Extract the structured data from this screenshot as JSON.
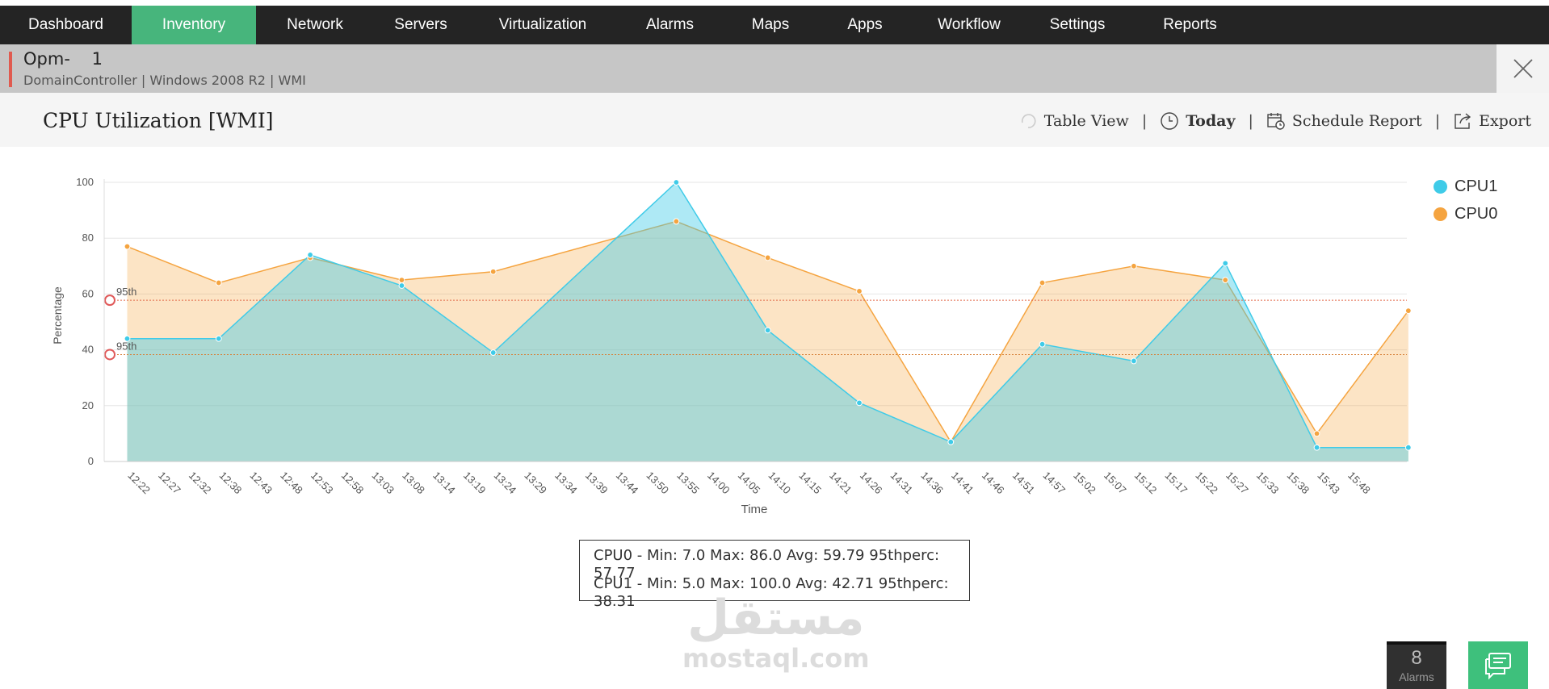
{
  "nav": {
    "items": [
      {
        "label": "Dashboard",
        "active": false
      },
      {
        "label": "Inventory",
        "active": true
      },
      {
        "label": "Network",
        "active": false
      },
      {
        "label": "Servers",
        "active": false
      },
      {
        "label": "Virtualization",
        "active": false
      },
      {
        "label": "Alarms",
        "active": false
      },
      {
        "label": "Maps",
        "active": false
      },
      {
        "label": "Apps",
        "active": false
      },
      {
        "label": "Workflow",
        "active": false
      },
      {
        "label": "Settings",
        "active": false
      },
      {
        "label": "Reports",
        "active": false
      }
    ]
  },
  "device": {
    "name": "Opm-    1",
    "info": "DomainController | Windows 2008 R2  | WMI"
  },
  "header": {
    "title": "CPU Utilization [WMI]",
    "table_view": "Table View",
    "today": "Today",
    "schedule_report": "Schedule Report",
    "export": "Export",
    "separator": "|"
  },
  "chart_data": {
    "type": "area",
    "xlabel": "Time",
    "ylabel": "Percentage",
    "ylim": [
      0,
      100
    ],
    "yticks": [
      0,
      20,
      40,
      60,
      80,
      100
    ],
    "grid": true,
    "legend_position": "top-right",
    "categories": [
      "12:22",
      "12:27",
      "12:32",
      "12:38",
      "12:43",
      "12:48",
      "12:53",
      "12:58",
      "13:03",
      "13:08",
      "13:14",
      "13:19",
      "13:24",
      "13:29",
      "13:34",
      "13:39",
      "13:44",
      "13:50",
      "13:55",
      "14:00",
      "14:05",
      "14:10",
      "14:15",
      "14:21",
      "14:26",
      "14:31",
      "14:36",
      "14:41",
      "14:46",
      "14:51",
      "14:57",
      "15:02",
      "15:07",
      "15:12",
      "15:17",
      "15:22",
      "15:27",
      "15:33",
      "15:38",
      "15:43",
      "15:48"
    ],
    "series": [
      {
        "name": "CPU1",
        "color": "#3fcbe8",
        "points": [
          [
            0,
            44
          ],
          [
            3,
            44
          ],
          [
            6,
            74
          ],
          [
            9,
            63
          ],
          [
            12,
            39
          ],
          [
            18,
            100
          ],
          [
            21,
            47
          ],
          [
            24,
            21
          ],
          [
            27,
            7
          ],
          [
            30,
            42
          ],
          [
            33,
            36
          ],
          [
            36,
            71
          ],
          [
            39,
            5
          ],
          [
            42,
            5
          ]
        ]
      },
      {
        "name": "CPU0",
        "color": "#f5a440",
        "points": [
          [
            0,
            77
          ],
          [
            3,
            64
          ],
          [
            6,
            73
          ],
          [
            9,
            65
          ],
          [
            12,
            68
          ],
          [
            18,
            86
          ],
          [
            21,
            73
          ],
          [
            24,
            61
          ],
          [
            27,
            7
          ],
          [
            30,
            64
          ],
          [
            33,
            70
          ],
          [
            36,
            65
          ],
          [
            39,
            10
          ],
          [
            42,
            54
          ]
        ]
      }
    ],
    "thresholds": [
      {
        "label": "95th",
        "value": 57.77
      },
      {
        "label": "95th",
        "value": 38.31
      }
    ]
  },
  "stats": {
    "cpu0": "CPU0 - Min: 7.0 Max: 86.0 Avg: 59.79 95thperc: 57.77",
    "cpu1": "CPU1 - Min: 5.0 Max: 100.0 Avg: 42.71 95thperc: 38.31"
  },
  "watermark": {
    "arabic": "مستقل",
    "latin": "mostaql.com"
  },
  "alarms": {
    "count": "8",
    "label": "Alarms"
  }
}
